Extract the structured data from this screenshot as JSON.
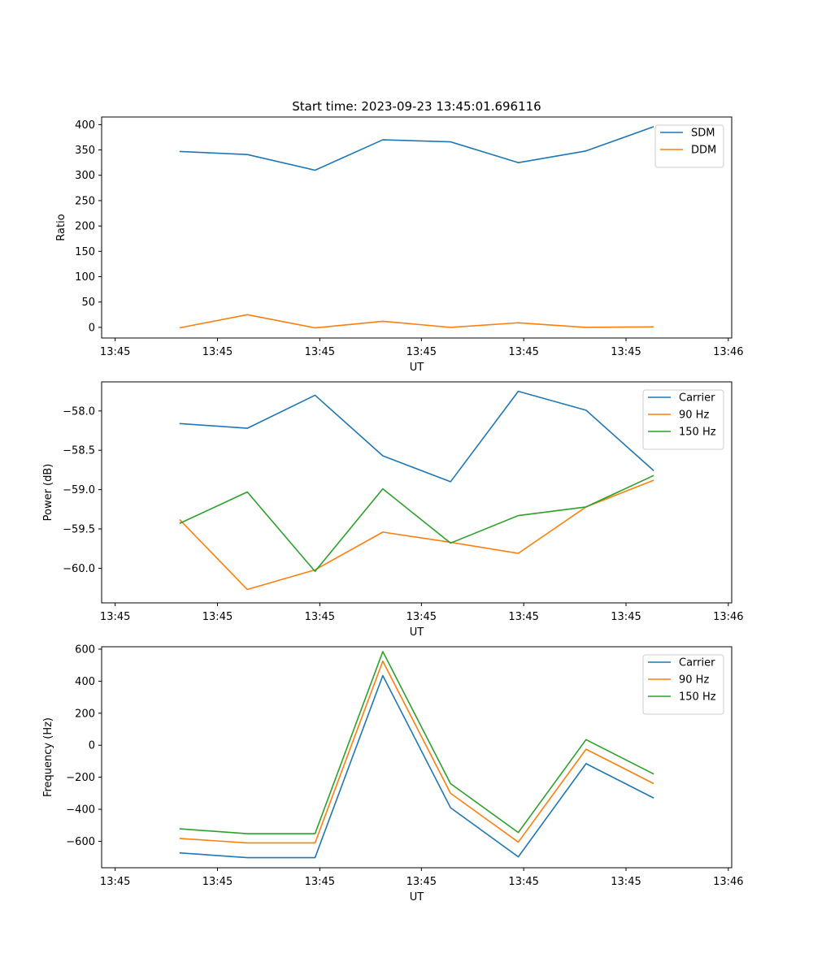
{
  "figure_title": "Start time: 2023-09-23 13:45:01.696116",
  "colors": {
    "blue": "#1f77b4",
    "orange": "#ff7f0e",
    "green": "#2ca02c"
  },
  "chart_data": [
    {
      "type": "line",
      "title": "Start time: 2023-09-23 13:45:01.696116",
      "xlabel": "UT",
      "ylabel": "Ratio",
      "x": [
        1,
        2,
        3,
        4,
        5,
        6,
        7,
        8
      ],
      "xlim": [
        -0.15,
        9.15
      ],
      "x_ticks": [
        0.05,
        1.56,
        3.07,
        4.57,
        6.08,
        7.59,
        9.1
      ],
      "x_tick_labels": [
        "13:45",
        "13:45",
        "13:45",
        "13:45",
        "13:45",
        "13:45",
        "13:46"
      ],
      "ylim": [
        -21,
        415
      ],
      "y_ticks": [
        0,
        50,
        100,
        150,
        200,
        250,
        300,
        350,
        400
      ],
      "y_tick_labels": [
        "0",
        "50",
        "100",
        "150",
        "200",
        "250",
        "300",
        "350",
        "400"
      ],
      "legend": "top-right",
      "series": [
        {
          "name": "SDM",
          "color": "#1f77b4",
          "values": [
            347,
            341,
            310,
            370,
            366,
            325,
            348,
            396
          ]
        },
        {
          "name": "DDM",
          "color": "#ff7f0e",
          "values": [
            -1,
            25,
            -1,
            12,
            0,
            9,
            0,
            1
          ]
        }
      ]
    },
    {
      "type": "line",
      "title": "",
      "xlabel": "UT",
      "ylabel": "Power (dB)",
      "x": [
        1,
        2,
        3,
        4,
        5,
        6,
        7,
        8
      ],
      "xlim": [
        -0.15,
        9.15
      ],
      "x_ticks": [
        0.05,
        1.56,
        3.07,
        4.57,
        6.08,
        7.59,
        9.1
      ],
      "x_tick_labels": [
        "13:45",
        "13:45",
        "13:45",
        "13:45",
        "13:45",
        "13:45",
        "13:46"
      ],
      "ylim": [
        -60.44,
        -57.63
      ],
      "y_ticks": [
        -60.0,
        -59.5,
        -59.0,
        -58.5,
        -58.0
      ],
      "y_tick_labels": [
        "−60.0",
        "−59.5",
        "−59.0",
        "−58.5",
        "−58.0"
      ],
      "legend": "top-right",
      "series": [
        {
          "name": "Carrier",
          "color": "#1f77b4",
          "values": [
            -58.16,
            -58.22,
            -57.8,
            -58.57,
            -58.9,
            -57.75,
            -57.99,
            -58.76
          ]
        },
        {
          "name": "90 Hz",
          "color": "#ff7f0e",
          "values": [
            -59.38,
            -60.27,
            -60.02,
            -59.54,
            -59.67,
            -59.81,
            -59.22,
            -58.88
          ]
        },
        {
          "name": "150 Hz",
          "color": "#2ca02c",
          "values": [
            -59.43,
            -59.03,
            -60.04,
            -58.99,
            -59.68,
            -59.33,
            -59.22,
            -58.82
          ]
        }
      ]
    },
    {
      "type": "line",
      "title": "",
      "xlabel": "UT",
      "ylabel": "Frequency (Hz)",
      "x": [
        1,
        2,
        3,
        4,
        5,
        6,
        7,
        8
      ],
      "xlim": [
        -0.15,
        9.15
      ],
      "x_ticks": [
        0.05,
        1.56,
        3.07,
        4.57,
        6.08,
        7.59,
        9.1
      ],
      "x_tick_labels": [
        "13:45",
        "13:45",
        "13:45",
        "13:45",
        "13:45",
        "13:45",
        "13:46"
      ],
      "ylim": [
        -765,
        615
      ],
      "y_ticks": [
        -600,
        -400,
        -200,
        0,
        200,
        400,
        600
      ],
      "y_tick_labels": [
        "−600",
        "−400",
        "−200",
        "0",
        "200",
        "400",
        "600"
      ],
      "legend": "top-right",
      "series": [
        {
          "name": "Carrier",
          "color": "#1f77b4",
          "values": [
            -672,
            -702,
            -702,
            435,
            -390,
            -697,
            -115,
            -330
          ]
        },
        {
          "name": "90 Hz",
          "color": "#ff7f0e",
          "values": [
            -582,
            -610,
            -610,
            525,
            -300,
            -605,
            -25,
            -240
          ]
        },
        {
          "name": "150 Hz",
          "color": "#2ca02c",
          "values": [
            -522,
            -552,
            -552,
            585,
            -240,
            -545,
            35,
            -180
          ]
        }
      ]
    }
  ]
}
